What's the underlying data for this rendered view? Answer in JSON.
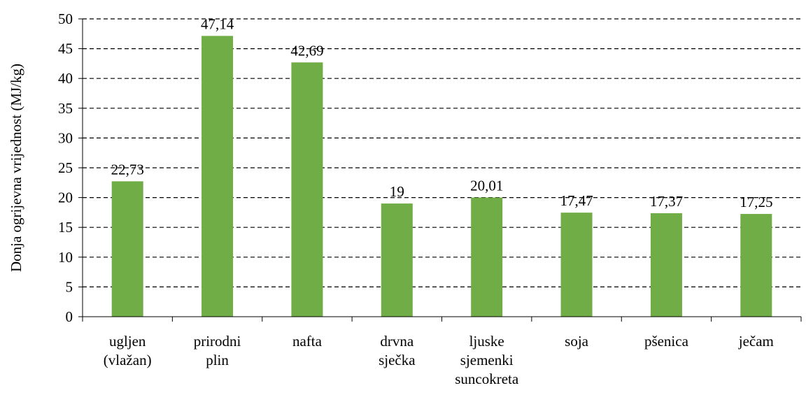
{
  "chart_data": {
    "type": "bar",
    "y_label": "Donja ogrijevna vrijednost (MJ/kg)",
    "categories": [
      "ugljen (vlažan)",
      "prirodni plin",
      "nafta",
      "drvna sječka",
      "ljuske sjemenki suncokreta",
      "soja",
      "pšenica",
      "ječam"
    ],
    "values": [
      22.73,
      47.14,
      42.69,
      19,
      20.01,
      17.47,
      17.37,
      17.25
    ],
    "value_labels": [
      "22,73",
      "47,14",
      "42,69",
      "19",
      "20,01",
      "17,47",
      "17,37",
      "17,25"
    ],
    "color": "#70ad47",
    "ylim": [
      0,
      50
    ],
    "yticks": [
      0,
      5,
      10,
      15,
      20,
      25,
      30,
      35,
      40,
      45,
      50
    ],
    "grid": true
  }
}
